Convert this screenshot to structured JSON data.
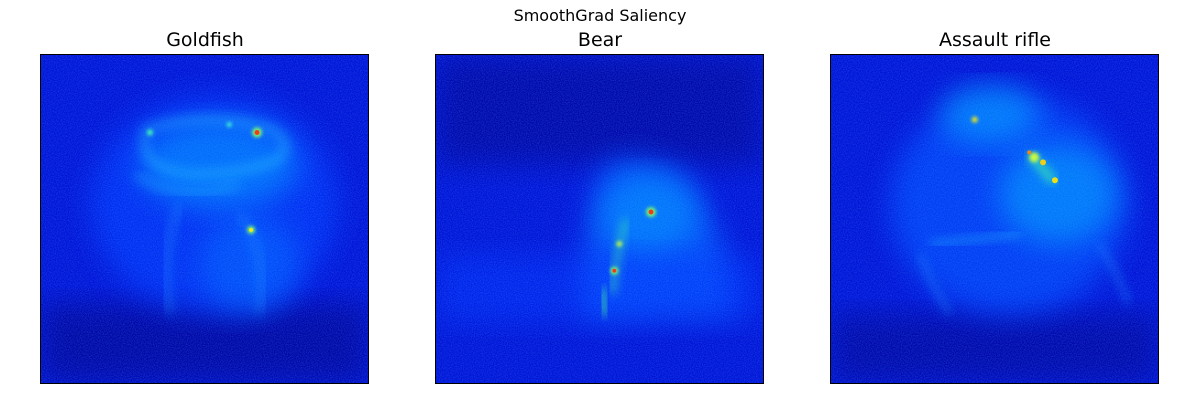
{
  "figure": {
    "suptitle": "SmoothGrad Saliency"
  },
  "panels": [
    {
      "title": "Goldfish",
      "colormap": "jet"
    },
    {
      "title": "Bear",
      "colormap": "jet"
    },
    {
      "title": "Assault rifle",
      "colormap": "jet"
    }
  ],
  "colors": {
    "background_low": "#00008f",
    "mid_blue": "#0020ff",
    "cyan": "#00e0ff",
    "green": "#40ff80",
    "yellow": "#ffff00",
    "red": "#ff2000"
  }
}
